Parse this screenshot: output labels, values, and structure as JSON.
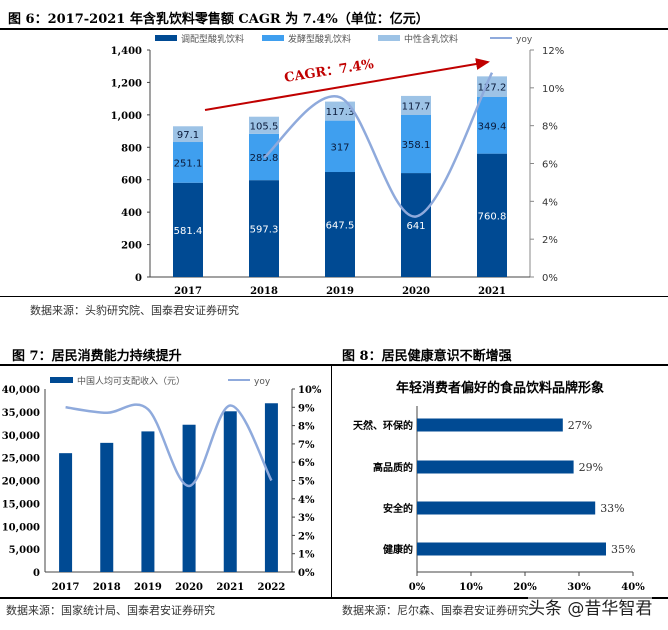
{
  "figures": [
    {
      "title": "图 6：2017-2021 年含乳饮料零售额 CAGR 为 7.4%（单位：亿元）",
      "source": "数据来源：头豹研究院、国泰君安证券研究"
    },
    {
      "title": "图 7：居民消费能力持续提升",
      "source": "数据来源：国家统计局、国泰君安证券研究"
    },
    {
      "title": "图 8：居民健康意识不断增强",
      "source": "数据来源：尼尔森、国泰君安证券研究"
    }
  ],
  "watermark": "头条 @昔华智君",
  "chart_data": [
    {
      "type": "bar",
      "stacked": true,
      "categories": [
        "2017",
        "2018",
        "2019",
        "2020",
        "2021"
      ],
      "series": [
        {
          "name": "调配型酸乳饮料",
          "values": [
            581.4,
            597.3,
            647.5,
            641,
            760.8
          ],
          "color": "#004A93"
        },
        {
          "name": "发酵型酸乳饮料",
          "values": [
            251.1,
            285.8,
            317,
            358.1,
            349.4
          ],
          "color": "#3F9FEF"
        },
        {
          "name": "中性含乳饮料",
          "values": [
            97.1,
            105.5,
            117.3,
            117.7,
            127.2
          ],
          "color": "#9DC3E6"
        },
        {
          "name": "yoy",
          "type": "line",
          "axis": "right",
          "values": [
            null,
            6.3,
            9.5,
            3.2,
            10.8
          ],
          "color": "#8FAADC"
        }
      ],
      "ylim": [
        0,
        1400
      ],
      "yticks": [
        "0",
        "200",
        "400",
        "600",
        "800",
        "1,000",
        "1,200",
        "1,400"
      ],
      "y2lim": [
        0,
        12
      ],
      "y2ticks": [
        "0%",
        "2%",
        "4%",
        "6%",
        "8%",
        "10%",
        "12%"
      ],
      "annotation": "CAGR：7.4%",
      "annotation_color": "#C00000",
      "legend": "top"
    },
    {
      "type": "bar",
      "categories": [
        "2017",
        "2018",
        "2019",
        "2020",
        "2021",
        "2022"
      ],
      "series": [
        {
          "name": "中国人均可支配收入（元）",
          "values": [
            25974,
            28228,
            30733,
            32189,
            35128,
            36883
          ],
          "color": "#004A93"
        },
        {
          "name": "yoy",
          "type": "line",
          "axis": "right",
          "values": [
            9.0,
            8.7,
            8.9,
            4.7,
            9.1,
            5.0
          ],
          "color": "#8FAADC"
        }
      ],
      "ylim": [
        0,
        40000
      ],
      "yticks": [
        "0",
        "5,000",
        "10,000",
        "15,000",
        "20,000",
        "25,000",
        "30,000",
        "35,000",
        "40,000"
      ],
      "y2lim": [
        0,
        10
      ],
      "y2ticks": [
        "0%",
        "1%",
        "2%",
        "3%",
        "4%",
        "5%",
        "6%",
        "7%",
        "8%",
        "9%",
        "10%"
      ],
      "legend": "top"
    },
    {
      "type": "bar",
      "orientation": "horizontal",
      "title": "年轻消费者偏好的食品饮料品牌形象",
      "categories": [
        "天然、环保的",
        "高品质的",
        "安全的",
        "健康的"
      ],
      "values": [
        27,
        29,
        33,
        35
      ],
      "labels": [
        "27%",
        "29%",
        "33%",
        "35%"
      ],
      "color": "#004A93",
      "xlim": [
        0,
        40
      ],
      "xticks": [
        "0%",
        "10%",
        "20%",
        "30%",
        "40%"
      ]
    }
  ]
}
